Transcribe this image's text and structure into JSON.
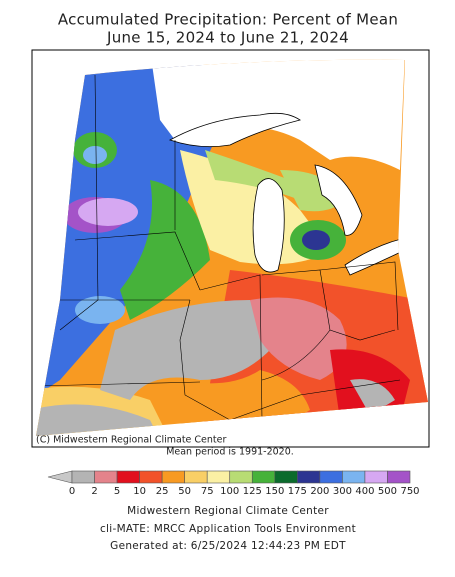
{
  "title": "Accumulated Precipitation: Percent of Mean",
  "subtitle": "June 15, 2024 to June 21, 2024",
  "map": {
    "credit": "(C) Midwestern Regional Climate Center",
    "note": "Mean period is 1991-2020."
  },
  "legend": {
    "labels": [
      0,
      2,
      5,
      10,
      25,
      50,
      75,
      100,
      125,
      150,
      175,
      200,
      300,
      400,
      500,
      750
    ],
    "colors": [
      "#b4b4b4",
      "#e4838b",
      "#e2101e",
      "#f2522a",
      "#f89a22",
      "#f9cf66",
      "#fbf0a4",
      "#b8dc74",
      "#46b23a",
      "#0b6b2c",
      "#2c3592",
      "#3c6fe0",
      "#7ab4f0",
      "#d6a8f2",
      "#a453c8"
    ],
    "below_color": "#c8c8c8"
  },
  "footer": [
    "Midwestern Regional Climate Center",
    "cli-MATE: MRCC Application Tools Environment",
    "Generated at: 6/25/2024 12:44:23 PM EDT"
  ]
}
